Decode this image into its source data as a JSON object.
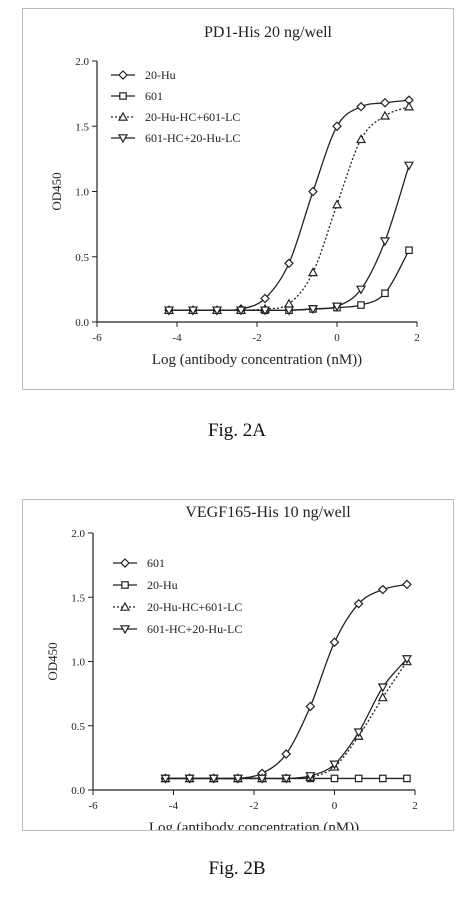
{
  "chart_data": [
    {
      "type": "line",
      "title": "PD1-His  20 ng/well",
      "caption": "Fig. 2A",
      "xlabel": "Log (antibody concentration  (nM))",
      "ylabel": "OD450",
      "xlim": [
        -6,
        2
      ],
      "ylim": [
        0,
        2.0
      ],
      "xticks": [
        "-6",
        "-4",
        "-2",
        "0",
        "2"
      ],
      "yticks": [
        "0.0",
        "0.5",
        "1.0",
        "1.5",
        "2.0"
      ],
      "legend_position": "top-left",
      "grid": false,
      "series": [
        {
          "name": "20-Hu",
          "marker": "diamond-open",
          "dash": "solid",
          "x": [
            -4.2,
            -3.6,
            -3.0,
            -2.4,
            -1.8,
            -1.2,
            -0.6,
            0.0,
            0.6,
            1.2,
            1.8
          ],
          "y": [
            0.09,
            0.09,
            0.09,
            0.1,
            0.18,
            0.45,
            1.0,
            1.5,
            1.65,
            1.68,
            1.7
          ]
        },
        {
          "name": "601",
          "marker": "square-open",
          "dash": "solid",
          "x": [
            -4.2,
            -3.6,
            -3.0,
            -2.4,
            -1.8,
            -1.2,
            -0.6,
            0.0,
            0.6,
            1.2,
            1.8
          ],
          "y": [
            0.09,
            0.09,
            0.09,
            0.09,
            0.09,
            0.09,
            0.1,
            0.11,
            0.13,
            0.22,
            0.55
          ]
        },
        {
          "name": "20-Hu-HC+601-LC",
          "marker": "triangle-open",
          "dash": "dotted",
          "x": [
            -4.2,
            -3.6,
            -3.0,
            -2.4,
            -1.8,
            -1.2,
            -0.6,
            0.0,
            0.6,
            1.2,
            1.8
          ],
          "y": [
            0.09,
            0.09,
            0.09,
            0.09,
            0.1,
            0.14,
            0.38,
            0.9,
            1.4,
            1.58,
            1.65
          ]
        },
        {
          "name": "601-HC+20-Hu-LC",
          "marker": "triangle-down-open",
          "dash": "solid",
          "x": [
            -4.2,
            -3.6,
            -3.0,
            -2.4,
            -1.8,
            -1.2,
            -0.6,
            0.0,
            0.6,
            1.2,
            1.8
          ],
          "y": [
            0.09,
            0.09,
            0.09,
            0.09,
            0.09,
            0.09,
            0.1,
            0.12,
            0.25,
            0.62,
            1.2
          ]
        }
      ]
    },
    {
      "type": "line",
      "title": "VEGF165-His 10 ng/well",
      "caption": "Fig. 2B",
      "xlabel": "Log (antibody concentration (nM))",
      "ylabel": "OD450",
      "xlim": [
        -6,
        2
      ],
      "ylim": [
        0,
        2.0
      ],
      "xticks": [
        "-6",
        "-4",
        "-2",
        "0",
        "2"
      ],
      "yticks": [
        "0.0",
        "0.5",
        "1.0",
        "1.5",
        "2.0"
      ],
      "legend_position": "top-left",
      "grid": false,
      "series": [
        {
          "name": "601",
          "marker": "diamond-open",
          "dash": "solid",
          "x": [
            -4.2,
            -3.6,
            -3.0,
            -2.4,
            -1.8,
            -1.2,
            -0.6,
            0.0,
            0.6,
            1.2,
            1.8
          ],
          "y": [
            0.09,
            0.09,
            0.09,
            0.09,
            0.13,
            0.28,
            0.65,
            1.15,
            1.45,
            1.56,
            1.6
          ]
        },
        {
          "name": "20-Hu",
          "marker": "square-open",
          "dash": "solid",
          "x": [
            -4.2,
            -3.6,
            -3.0,
            -2.4,
            -1.8,
            -1.2,
            -0.6,
            0.0,
            0.6,
            1.2,
            1.8
          ],
          "y": [
            0.09,
            0.09,
            0.09,
            0.09,
            0.09,
            0.09,
            0.09,
            0.09,
            0.09,
            0.09,
            0.09
          ]
        },
        {
          "name": "20-Hu-HC+601-LC",
          "marker": "triangle-open",
          "dash": "dotted",
          "x": [
            -4.2,
            -3.6,
            -3.0,
            -2.4,
            -1.8,
            -1.2,
            -0.6,
            0.0,
            0.6,
            1.2,
            1.8
          ],
          "y": [
            0.09,
            0.09,
            0.09,
            0.09,
            0.09,
            0.09,
            0.1,
            0.18,
            0.42,
            0.72,
            1.0
          ]
        },
        {
          "name": "601-HC+20-Hu-LC",
          "marker": "triangle-down-open",
          "dash": "solid",
          "x": [
            -4.2,
            -3.6,
            -3.0,
            -2.4,
            -1.8,
            -1.2,
            -0.6,
            0.0,
            0.6,
            1.2,
            1.8
          ],
          "y": [
            0.09,
            0.09,
            0.09,
            0.09,
            0.09,
            0.09,
            0.11,
            0.2,
            0.45,
            0.8,
            1.02
          ]
        }
      ]
    }
  ]
}
